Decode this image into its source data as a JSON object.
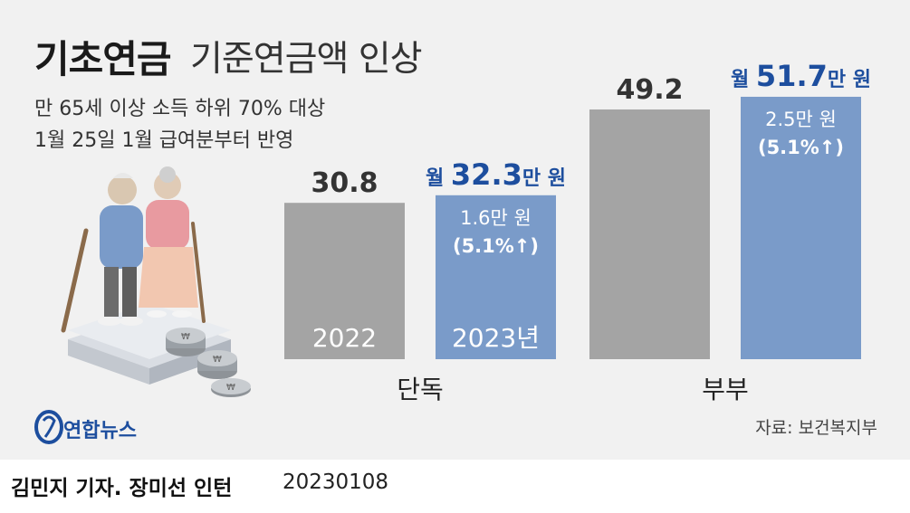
{
  "title": {
    "main": "기초연금",
    "sub": "기준연금액 인상"
  },
  "subtitle_lines": [
    "만 65세 이상 소득 하위 70% 대상",
    "1월 25일 1월 급여분부터 반영"
  ],
  "source": "자료: 보건복지부",
  "logo": "연합뉴스",
  "byline": {
    "credit": "김민지 기자. 장미선 인턴",
    "date": "20230108"
  },
  "colors": {
    "bar_2022": "#a4a4a4",
    "bar_2023": "#7a9bc9",
    "accent_text": "#1d4e9e"
  },
  "chart_data": {
    "type": "bar",
    "categories": [
      "단독",
      "부부"
    ],
    "series": [
      {
        "name": "2022",
        "values": [
          30.8,
          49.2
        ],
        "value_labels": [
          "30.8",
          "49.2"
        ],
        "bar_label": "2022"
      },
      {
        "name": "2023년",
        "values": [
          32.3,
          51.7
        ],
        "value_labels": [
          {
            "prefix": "월 ",
            "number": "32.3",
            "suffix": "만 원"
          },
          {
            "prefix": "월 ",
            "number": "51.7",
            "suffix": "만 원"
          }
        ],
        "increase": [
          {
            "amount": "1.6만 원",
            "pct": "(5.1%↑)"
          },
          {
            "amount": "2.5만 원",
            "pct": "(5.1%↑)"
          }
        ],
        "bar_label": "2023년"
      }
    ],
    "ylim": [
      0,
      60
    ]
  }
}
